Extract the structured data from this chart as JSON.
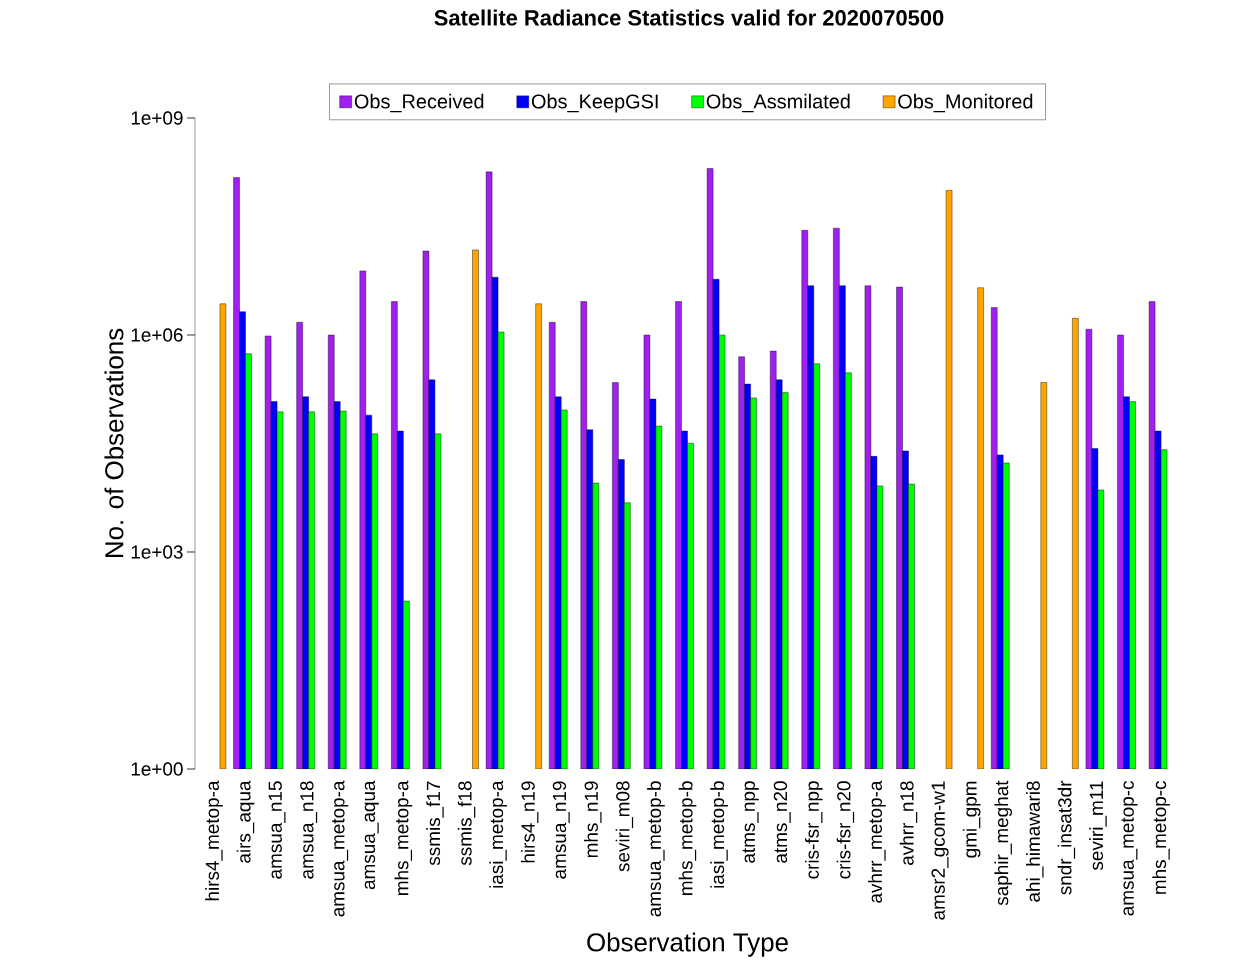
{
  "chart_data": {
    "type": "bar",
    "title": "Satellite Radiance Statistics valid for 2020070500",
    "xlabel": "Observation Type",
    "ylabel": "No. of Observations",
    "log": "y",
    "legend": "top",
    "categories": [
      "hirs4_metop-a",
      "airs_aqua",
      "amsua_n15",
      "amsua_n18",
      "amsua_metop-a",
      "amsua_aqua",
      "mhs_metop-a",
      "ssmis_f17",
      "ssmis_f18",
      "iasi_metop-a",
      "hirs4_n19",
      "amsua_n19",
      "mhs_n19",
      "seviri_m08",
      "amsua_metop-b",
      "mhs_metop-b",
      "iasi_metop-b",
      "atms_npp",
      "atms_n20",
      "cris-fsr_npp",
      "cris-fsr_n20",
      "avhrr_metop-a",
      "avhrr_n18",
      "amsr2_gcom-w1",
      "gmi_gpm",
      "saphir_meghat",
      "ahi_himawari8",
      "sndr_insat3dr",
      "seviri_m11",
      "amsua_metop-c",
      "mhs_metop-c"
    ],
    "ylim": [
      1,
      1000000000
    ],
    "yticks": [
      {
        "value": 1,
        "label": "1e+00"
      },
      {
        "value": 1000,
        "label": "1e+03"
      },
      {
        "value": 1000000,
        "label": "1e+06"
      },
      {
        "value": 1000000000,
        "label": "1e+09"
      }
    ],
    "series": [
      {
        "name": "Obs_Received",
        "color": "#a020f0",
        "values": [
          null,
          150000000,
          970000,
          1500000,
          1000000,
          7700000,
          2900000,
          14500000,
          null,
          180000000,
          null,
          1500000,
          2900000,
          220000,
          1000000,
          2900000,
          200000000,
          500000,
          600000,
          28000000,
          30000000,
          4800000,
          4600000,
          null,
          null,
          2400000,
          null,
          null,
          1200000,
          1000000,
          2900000
        ]
      },
      {
        "name": "Obs_KeepGSI",
        "color": "#0000ff",
        "values": [
          null,
          2100000,
          120000,
          140000,
          120000,
          78000,
          47000,
          240000,
          null,
          6300000,
          null,
          140000,
          49000,
          19000,
          130000,
          47000,
          5900000,
          210000,
          240000,
          4800000,
          4800000,
          21000,
          25000,
          null,
          null,
          22000,
          null,
          null,
          27000,
          140000,
          47000
        ]
      },
      {
        "name": "Obs_Assmilated",
        "color": "#00ff00",
        "values": [
          null,
          550000,
          87000,
          87000,
          89000,
          43000,
          210,
          43000,
          null,
          1100000,
          null,
          92000,
          9000,
          4800,
          55000,
          32000,
          1000000,
          135000,
          160000,
          400000,
          300000,
          8200,
          8700,
          null,
          null,
          17000,
          null,
          null,
          7200,
          120000,
          26000
        ]
      },
      {
        "name": "Obs_Monitored",
        "color": "#ffa500",
        "values": [
          2700000,
          null,
          null,
          null,
          null,
          null,
          null,
          null,
          15000000,
          null,
          2700000,
          null,
          null,
          null,
          null,
          null,
          null,
          null,
          null,
          null,
          null,
          null,
          null,
          100000000,
          4500000,
          null,
          220000,
          1700000,
          null,
          null,
          null
        ]
      }
    ]
  }
}
